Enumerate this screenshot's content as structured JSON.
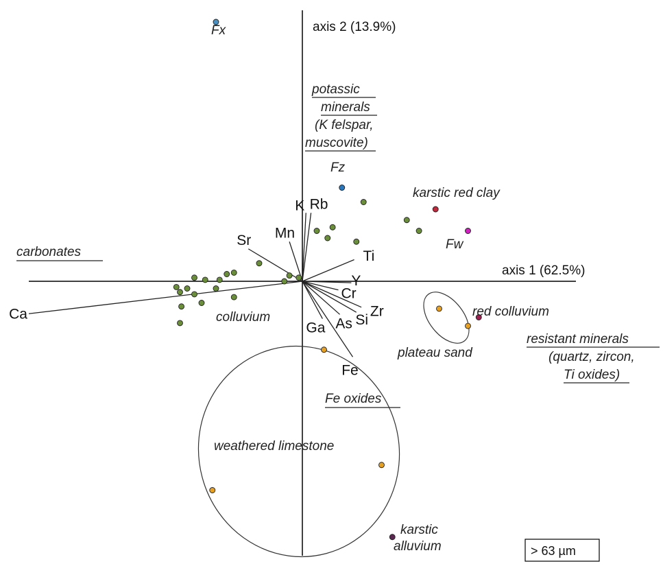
{
  "chart_data": {
    "type": "scatter",
    "axes": {
      "x_label": "axis 1 (62.5%)",
      "y_label": "axis 2 (13.9%)"
    },
    "variables": [
      {
        "name": "Ca",
        "x": -3.8,
        "y": -0.45
      },
      {
        "name": "Sr",
        "x": -0.75,
        "y": 0.45
      },
      {
        "name": "Mn",
        "x": -0.18,
        "y": 0.55
      },
      {
        "name": "K",
        "x": 0.05,
        "y": 0.95
      },
      {
        "name": "Rb",
        "x": 0.12,
        "y": 0.95
      },
      {
        "name": "Ti",
        "x": 0.72,
        "y": 0.3
      },
      {
        "name": "Y",
        "x": 0.68,
        "y": -0.02
      },
      {
        "name": "Cr",
        "x": 0.5,
        "y": -0.12
      },
      {
        "name": "Zr",
        "x": 0.82,
        "y": -0.36
      },
      {
        "name": "Si",
        "x": 0.75,
        "y": -0.43
      },
      {
        "name": "As",
        "x": 0.52,
        "y": -0.46
      },
      {
        "name": "Ga",
        "x": 0.28,
        "y": -0.52
      },
      {
        "name": "Fe",
        "x": 0.7,
        "y": -1.05
      }
    ],
    "samples": [
      {
        "group": "colluvium",
        "color": "#6b8e3a",
        "points": [
          [
            -1.5,
            0.05
          ],
          [
            -1.35,
            0.02
          ],
          [
            -1.15,
            0.02
          ],
          [
            -1.05,
            0.1
          ],
          [
            -0.95,
            0.12
          ],
          [
            -1.5,
            -0.18
          ],
          [
            -1.6,
            -0.1
          ],
          [
            -1.75,
            -0.08
          ],
          [
            -1.7,
            -0.15
          ],
          [
            -1.4,
            -0.3
          ],
          [
            -1.68,
            -0.35
          ],
          [
            -1.2,
            -0.1
          ],
          [
            -1.7,
            -0.58
          ],
          [
            -0.95,
            -0.22
          ],
          [
            -0.6,
            0.25
          ],
          [
            -0.18,
            0.08
          ],
          [
            -0.25,
            0.0
          ],
          [
            -0.05,
            0.05
          ],
          [
            0.35,
            0.6
          ],
          [
            0.42,
            0.75
          ],
          [
            0.2,
            0.7
          ],
          [
            0.85,
            1.1
          ],
          [
            0.75,
            0.55
          ],
          [
            1.45,
            0.85
          ],
          [
            1.62,
            0.7
          ]
        ]
      },
      {
        "group": "plateau sand",
        "color": "#e8a020",
        "points": [
          [
            1.9,
            -0.38
          ],
          [
            2.3,
            -0.62
          ],
          [
            0.3,
            -0.95
          ],
          [
            1.1,
            -2.55
          ],
          [
            -1.25,
            -2.9
          ]
        ]
      },
      {
        "group": "Fx",
        "color": "#4a90c0",
        "points": [
          [
            -1.2,
            3.6
          ]
        ]
      },
      {
        "group": "Fz",
        "color": "#2878c0",
        "points": [
          [
            0.55,
            1.3
          ]
        ]
      },
      {
        "group": "karstic red clay",
        "color": "#c0283c",
        "points": [
          [
            1.85,
            1.0
          ]
        ]
      },
      {
        "group": "Fw",
        "color": "#d020c0",
        "points": [
          [
            2.3,
            0.7
          ]
        ]
      },
      {
        "group": "red colluvium",
        "color": "#9a2050",
        "points": [
          [
            2.45,
            -0.5
          ]
        ]
      },
      {
        "group": "karstic alluvium",
        "color": "#5a2850",
        "points": [
          [
            1.25,
            -3.55
          ]
        ]
      }
    ],
    "labels": {
      "Fx": "Fx",
      "Fz": "Fz",
      "Fw": "Fw",
      "karstic_red_clay": "karstic red clay",
      "red_colluvium": "red colluvium",
      "plateau_sand": "plateau sand",
      "colluvium": "colluvium",
      "weathered_limestone": "weathered limestone",
      "karstic_alluvium_1": "karstic",
      "karstic_alluvium_2": "alluvium",
      "carbonates": "carbonates",
      "fe_oxides": "Fe oxides",
      "potassic": [
        "potassic",
        "minerals",
        "(K felspar,",
        "muscovite)"
      ],
      "resistant": [
        "resistant minerals",
        "(quartz, zircon,",
        "Ti oxides)"
      ]
    },
    "size_fraction": "> 63 µm",
    "grid": false,
    "legend": "none"
  }
}
